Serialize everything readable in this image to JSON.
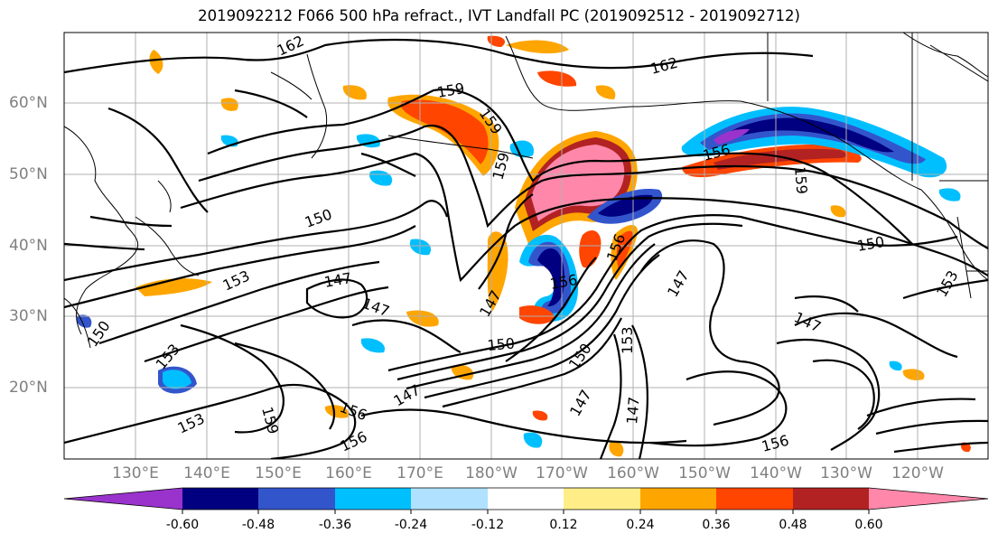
{
  "title": "2019092212 F066 500 hPa refract., IVT Landfall PC (2019092512 - 2019092712)",
  "lat_labels": [
    "60°N",
    "50°N",
    "40°N",
    "30°N",
    "20°N"
  ],
  "lon_labels": [
    "130°E",
    "140°E",
    "150°E",
    "160°E",
    "170°E",
    "180°W",
    "170°W",
    "160°W",
    "150°W",
    "140°W",
    "130°W",
    "120°W"
  ],
  "contour_labels": [
    "162",
    "162",
    "159",
    "159",
    "159",
    "159",
    "159",
    "156",
    "156",
    "156",
    "156",
    "156",
    "156",
    "153",
    "153",
    "153",
    "153",
    "153",
    "150",
    "150",
    "150",
    "150",
    "150",
    "147",
    "147",
    "147",
    "147",
    "147",
    "147",
    "147",
    "147"
  ],
  "colorbar": {
    "ticks": [
      "-0.60",
      "-0.48",
      "-0.36",
      "-0.24",
      "-0.12",
      "0.12",
      "0.24",
      "0.36",
      "0.48",
      "0.60"
    ],
    "colors": [
      "#9933cc",
      "#000080",
      "#3355cc",
      "#00bfff",
      "#b0e2ff",
      "#ffffff",
      "#ffee88",
      "#ffa500",
      "#ff4500",
      "#b22222",
      "#ff88aa"
    ]
  }
}
